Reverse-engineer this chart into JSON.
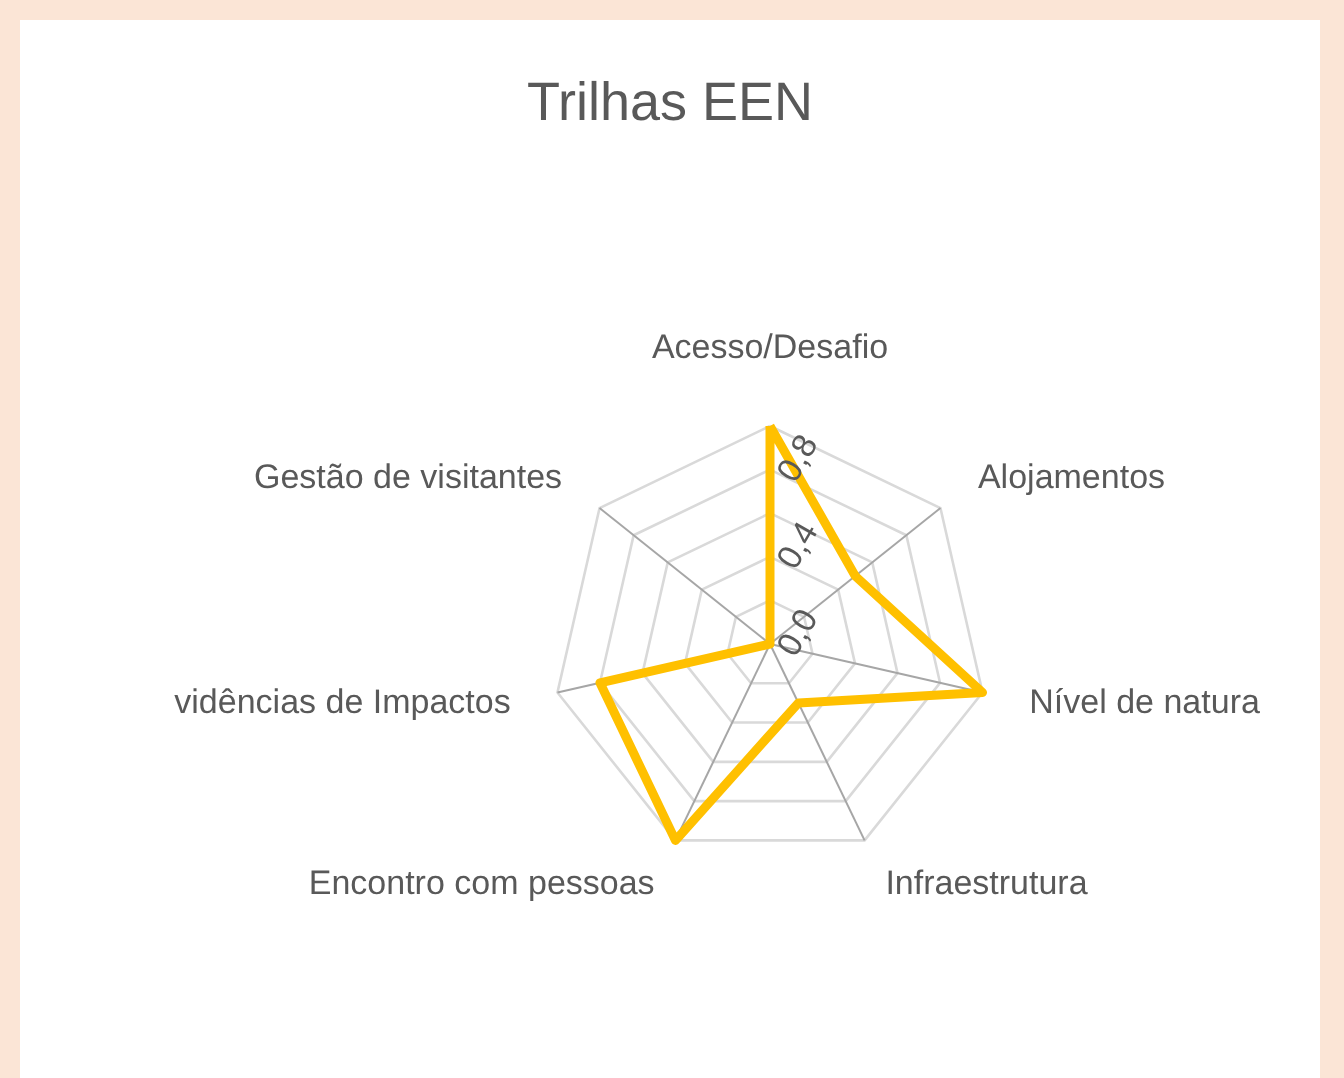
{
  "chart_data": {
    "type": "radar",
    "title": "Trilhas EEN",
    "categories": [
      "Acesso/Desafio",
      "Alojamentos",
      "Nível de natura",
      "Infraestrutura",
      "Encontro com pessoas",
      "vidências de Impactos",
      "Gestão de visitantes"
    ],
    "series": [
      {
        "color": "#ffc000",
        "values": [
          1,
          0.5,
          1,
          0.3,
          1,
          0.8,
          0
        ]
      }
    ],
    "ylim": [
      0,
      1
    ],
    "yticks": [
      {
        "value": 0,
        "label": "0,0"
      },
      {
        "value": 0.4,
        "label": "0,4"
      },
      {
        "value": 0.8,
        "label": "0,8"
      }
    ],
    "grid": true,
    "marker": "none"
  }
}
